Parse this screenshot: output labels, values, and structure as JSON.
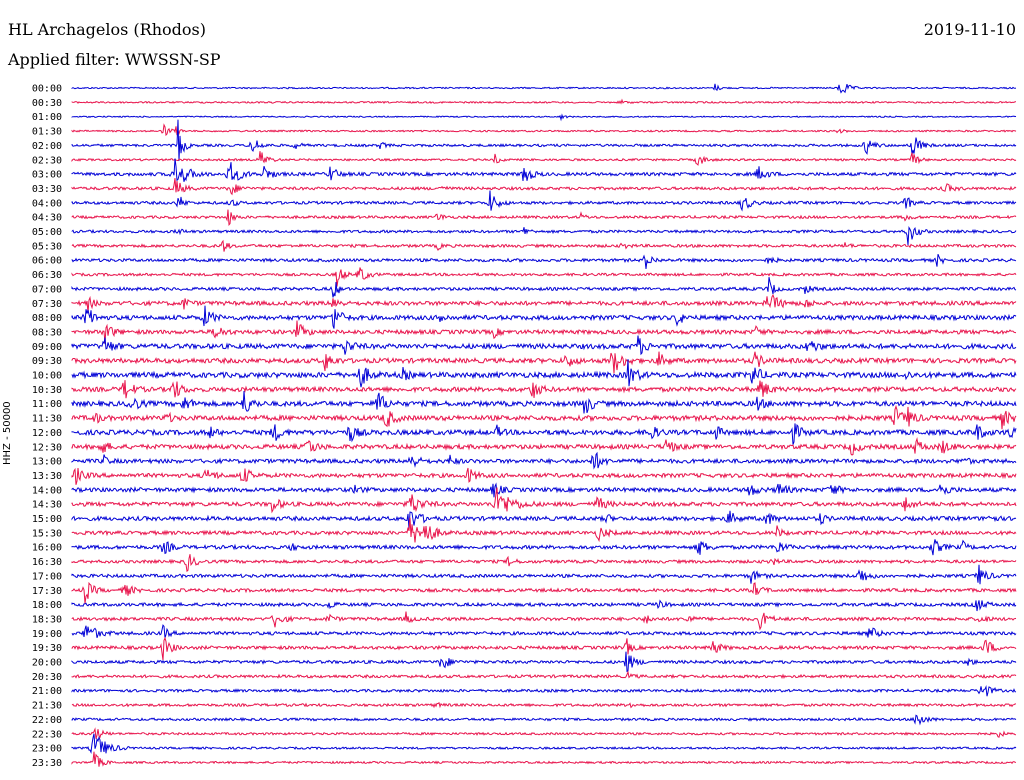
{
  "header": {
    "station": "HL Archagelos (Rhodos)",
    "filter": "Applied filter: WWSSN-SP",
    "date": "2019-11-10"
  },
  "chart_data": {
    "type": "helicorder",
    "ylabel": "HHZ - 50000",
    "colors": [
      "#0000d6",
      "#e8144c"
    ],
    "rows": [
      "00:00",
      "00:30",
      "01:00",
      "01:30",
      "02:00",
      "02:30",
      "03:00",
      "03:30",
      "04:00",
      "04:30",
      "05:00",
      "05:30",
      "06:00",
      "06:30",
      "07:00",
      "07:30",
      "08:00",
      "08:30",
      "09:00",
      "09:30",
      "10:00",
      "10:30",
      "11:00",
      "11:30",
      "12:00",
      "12:30",
      "13:00",
      "13:30",
      "14:00",
      "14:30",
      "15:00",
      "15:30",
      "16:00",
      "16:30",
      "17:00",
      "17:30",
      "18:00",
      "18:30",
      "19:00",
      "19:30",
      "20:00",
      "20:30",
      "21:00",
      "21:30",
      "22:00",
      "22:30",
      "23:00",
      "23:30"
    ],
    "noise": [
      0.7,
      0.8,
      0.6,
      0.8,
      1.2,
      1.0,
      1.6,
      1.4,
      1.4,
      1.3,
      1.3,
      1.4,
      1.5,
      1.3,
      1.5,
      2.0,
      2.2,
      2.0,
      2.4,
      2.3,
      2.6,
      2.2,
      2.4,
      2.4,
      2.4,
      2.2,
      2.0,
      2.0,
      2.0,
      2.0,
      2.0,
      1.8,
      1.8,
      1.5,
      1.6,
      1.6,
      1.6,
      1.6,
      1.6,
      1.6,
      1.5,
      1.4,
      1.3,
      1.3,
      1.2,
      1.1,
      1.0,
      1.0
    ],
    "events": [
      [
        [
          840,
          11,
          1.5
        ],
        [
          715,
          4,
          1
        ]
      ],
      [
        [
          620,
          3,
          1
        ]
      ],
      [
        [
          560,
          3,
          1
        ]
      ],
      [
        [
          163,
          8,
          1.2
        ],
        [
          176,
          4,
          1
        ],
        [
          838,
          3,
          1
        ]
      ],
      [
        [
          178,
          25,
          1
        ],
        [
          252,
          10,
          1.5
        ],
        [
          295,
          5,
          1
        ],
        [
          380,
          4,
          1
        ],
        [
          865,
          10,
          1.5
        ],
        [
          912,
          14,
          1.5
        ]
      ],
      [
        [
          260,
          10,
          1.5
        ],
        [
          495,
          5,
          1
        ],
        [
          697,
          7,
          1.5
        ],
        [
          912,
          8,
          1.2
        ]
      ],
      [
        [
          175,
          16,
          2.5
        ],
        [
          229,
          14,
          2
        ],
        [
          264,
          8,
          1.5
        ],
        [
          330,
          8,
          1.5
        ],
        [
          523,
          12,
          1.5
        ],
        [
          758,
          9,
          1.5
        ]
      ],
      [
        [
          175,
          10,
          1.5
        ],
        [
          230,
          8,
          1.5
        ],
        [
          440,
          3,
          1
        ],
        [
          945,
          5,
          1.5
        ]
      ],
      [
        [
          178,
          10,
          1
        ],
        [
          230,
          6,
          1
        ],
        [
          490,
          12,
          1.5
        ],
        [
          742,
          10,
          1.5
        ],
        [
          905,
          8,
          1.2
        ]
      ],
      [
        [
          228,
          10,
          1
        ],
        [
          437,
          6,
          1
        ],
        [
          580,
          4,
          1
        ],
        [
          905,
          4,
          1
        ]
      ],
      [
        [
          177,
          4,
          1
        ],
        [
          524,
          5,
          1
        ],
        [
          908,
          14,
          1.5
        ]
      ],
      [
        [
          222,
          8,
          1
        ],
        [
          437,
          4,
          1
        ],
        [
          622,
          4,
          1
        ],
        [
          845,
          3,
          1
        ]
      ],
      [
        [
          645,
          10,
          1.2
        ],
        [
          768,
          5,
          1
        ],
        [
          937,
          6,
          1
        ]
      ],
      [
        [
          337,
          12,
          1.2
        ],
        [
          359,
          10,
          1.5
        ]
      ],
      [
        [
          333,
          12,
          1
        ],
        [
          768,
          14,
          1
        ],
        [
          805,
          5,
          1
        ]
      ],
      [
        [
          87,
          10,
          1
        ],
        [
          183,
          7,
          1
        ],
        [
          333,
          10,
          1
        ],
        [
          768,
          12,
          2
        ],
        [
          805,
          6,
          1
        ]
      ],
      [
        [
          86,
          12,
          1.5
        ],
        [
          204,
          12,
          1.5
        ],
        [
          333,
          14,
          1.5
        ],
        [
          440,
          6,
          1
        ],
        [
          677,
          10,
          1
        ]
      ],
      [
        [
          104,
          12,
          1.5
        ],
        [
          215,
          8,
          1.5
        ],
        [
          297,
          10,
          1.5
        ],
        [
          494,
          5,
          1
        ],
        [
          756,
          5,
          1
        ]
      ],
      [
        [
          104,
          10,
          1.5
        ],
        [
          345,
          8,
          1.5
        ],
        [
          638,
          10,
          1.5
        ],
        [
          808,
          9,
          1.5
        ]
      ],
      [
        [
          325,
          10,
          1.5
        ],
        [
          566,
          8,
          1.5
        ],
        [
          612,
          14,
          2
        ],
        [
          658,
          8,
          1.5
        ],
        [
          755,
          8,
          1.5
        ]
      ],
      [
        [
          360,
          14,
          1.5
        ],
        [
          403,
          6,
          1
        ],
        [
          628,
          14,
          1.5
        ],
        [
          752,
          12,
          1.5
        ],
        [
          905,
          4,
          1
        ]
      ],
      [
        [
          124,
          12,
          1.5
        ],
        [
          173,
          12,
          1.5
        ],
        [
          532,
          10,
          1.5
        ],
        [
          760,
          12,
          1.5
        ]
      ],
      [
        [
          130,
          10,
          1.5
        ],
        [
          183,
          8,
          1.5
        ],
        [
          243,
          14,
          1.5
        ],
        [
          377,
          14,
          1.5
        ],
        [
          584,
          12,
          1.5
        ],
        [
          755,
          8,
          1.5
        ]
      ],
      [
        [
          95,
          6,
          1
        ],
        [
          166,
          6,
          1
        ],
        [
          385,
          12,
          1.5
        ],
        [
          895,
          12,
          1.5
        ],
        [
          908,
          8,
          1.5
        ],
        [
          1002,
          9,
          1.5
        ]
      ],
      [
        [
          210,
          6,
          1
        ],
        [
          273,
          10,
          1.5
        ],
        [
          349,
          10,
          1.5
        ],
        [
          497,
          6,
          1
        ],
        [
          648,
          10,
          1.5
        ],
        [
          716,
          7,
          1
        ],
        [
          793,
          10,
          1.5
        ],
        [
          975,
          10,
          1.5
        ],
        [
          1008,
          8,
          1.5
        ]
      ],
      [
        [
          100,
          8,
          1.5
        ],
        [
          307,
          10,
          1.5
        ],
        [
          666,
          8,
          1.5
        ],
        [
          851,
          8,
          1.5
        ],
        [
          915,
          8,
          1.5
        ],
        [
          941,
          8,
          1.5
        ]
      ],
      [
        [
          103,
          6,
          1
        ],
        [
          410,
          9,
          1.5
        ],
        [
          450,
          6,
          1
        ],
        [
          593,
          12,
          1.5
        ],
        [
          963,
          5,
          1
        ]
      ],
      [
        [
          75,
          9,
          1.5
        ],
        [
          206,
          8,
          1.5
        ],
        [
          242,
          10,
          1.5
        ],
        [
          468,
          8,
          1.5
        ]
      ],
      [
        [
          355,
          6,
          1
        ],
        [
          493,
          8,
          1.5
        ],
        [
          748,
          8,
          1.5
        ],
        [
          778,
          8,
          1.5
        ],
        [
          830,
          8,
          1.5
        ],
        [
          940,
          8,
          1.5
        ]
      ],
      [
        [
          272,
          8,
          1.5
        ],
        [
          410,
          12,
          2
        ],
        [
          497,
          16,
          3
        ],
        [
          597,
          8,
          1.5
        ],
        [
          905,
          8,
          1.5
        ]
      ],
      [
        [
          409,
          12,
          2
        ],
        [
          605,
          6,
          1
        ],
        [
          728,
          8,
          1.5
        ],
        [
          765,
          8,
          1.5
        ],
        [
          820,
          6,
          1
        ],
        [
          988,
          6,
          1
        ]
      ],
      [
        [
          410,
          14,
          2.5
        ],
        [
          424,
          10,
          2
        ],
        [
          598,
          8,
          1.5
        ],
        [
          777,
          6,
          1
        ]
      ],
      [
        [
          163,
          8,
          1.5
        ],
        [
          290,
          5,
          1
        ],
        [
          698,
          10,
          1.5
        ],
        [
          776,
          8,
          1.5
        ],
        [
          932,
          10,
          1.5
        ],
        [
          962,
          6,
          1
        ]
      ],
      [
        [
          187,
          10,
          1.5
        ],
        [
          508,
          6,
          1
        ],
        [
          770,
          6,
          1
        ]
      ],
      [
        [
          750,
          8,
          1.5
        ],
        [
          859,
          10,
          1.5
        ],
        [
          978,
          12,
          1.5
        ]
      ],
      [
        [
          85,
          12,
          1.5
        ],
        [
          124,
          8,
          1.5
        ],
        [
          753,
          8,
          1.5
        ]
      ],
      [
        [
          328,
          5,
          1
        ],
        [
          658,
          5,
          1
        ],
        [
          976,
          8,
          1.5
        ]
      ],
      [
        [
          274,
          10,
          1.5
        ],
        [
          328,
          6,
          1
        ],
        [
          406,
          6,
          1
        ],
        [
          645,
          6,
          1
        ],
        [
          686,
          6,
          1
        ],
        [
          760,
          10,
          1.5
        ],
        [
          980,
          6,
          1
        ]
      ],
      [
        [
          86,
          12,
          2
        ],
        [
          163,
          8,
          1
        ],
        [
          869,
          8,
          1.5
        ]
      ],
      [
        [
          163,
          12,
          1.5
        ],
        [
          626,
          10,
          1
        ],
        [
          712,
          8,
          1.5
        ],
        [
          985,
          10,
          1.5
        ]
      ],
      [
        [
          441,
          10,
          1.5
        ],
        [
          626,
          12,
          1.5
        ],
        [
          968,
          4,
          1
        ]
      ],
      [
        [
          628,
          4,
          1
        ]
      ],
      [
        [
          981,
          12,
          1.5
        ]
      ],
      [
        [
          435,
          3,
          1
        ],
        [
          628,
          4,
          1
        ]
      ],
      [
        [
          916,
          10,
          1.5
        ]
      ],
      [
        [
          94,
          8,
          1.5
        ],
        [
          998,
          4,
          1
        ]
      ],
      [
        [
          94,
          18,
          2.5
        ]
      ],
      [
        [
          94,
          10,
          1.5
        ]
      ]
    ]
  }
}
